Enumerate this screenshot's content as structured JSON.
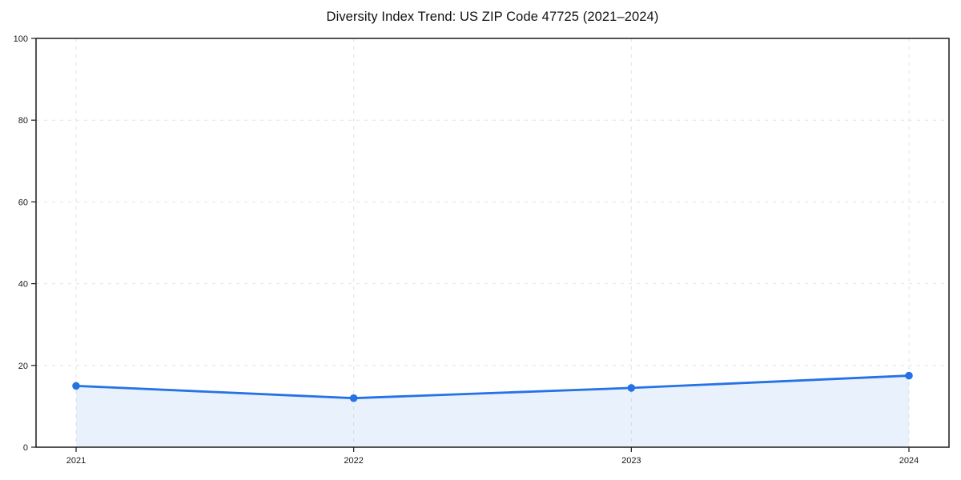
{
  "chart_data": {
    "type": "area",
    "title": "Diversity Index Trend: US ZIP Code 47725 (2021–2024)",
    "categories": [
      "2021",
      "2022",
      "2023",
      "2024"
    ],
    "series": [
      {
        "name": "Diversity Index",
        "values": [
          15.0,
          12.0,
          14.5,
          17.5
        ]
      }
    ],
    "xlabel": "",
    "ylabel": "",
    "ylim": [
      0,
      100
    ],
    "yticks": [
      0,
      20,
      40,
      60,
      80,
      100
    ],
    "grid": true,
    "grid_style": "dashed",
    "legend_position": "none",
    "marker": "circle",
    "colors": {
      "line": "#2572e6",
      "marker": "#2572e6",
      "fill": "rgba(37, 114, 230, 0.10)",
      "grid": "#e2e2e2",
      "spine": "#1a1a1a",
      "tick_label": "#1a1a1a",
      "title": "#111111",
      "background": "#ffffff"
    }
  }
}
